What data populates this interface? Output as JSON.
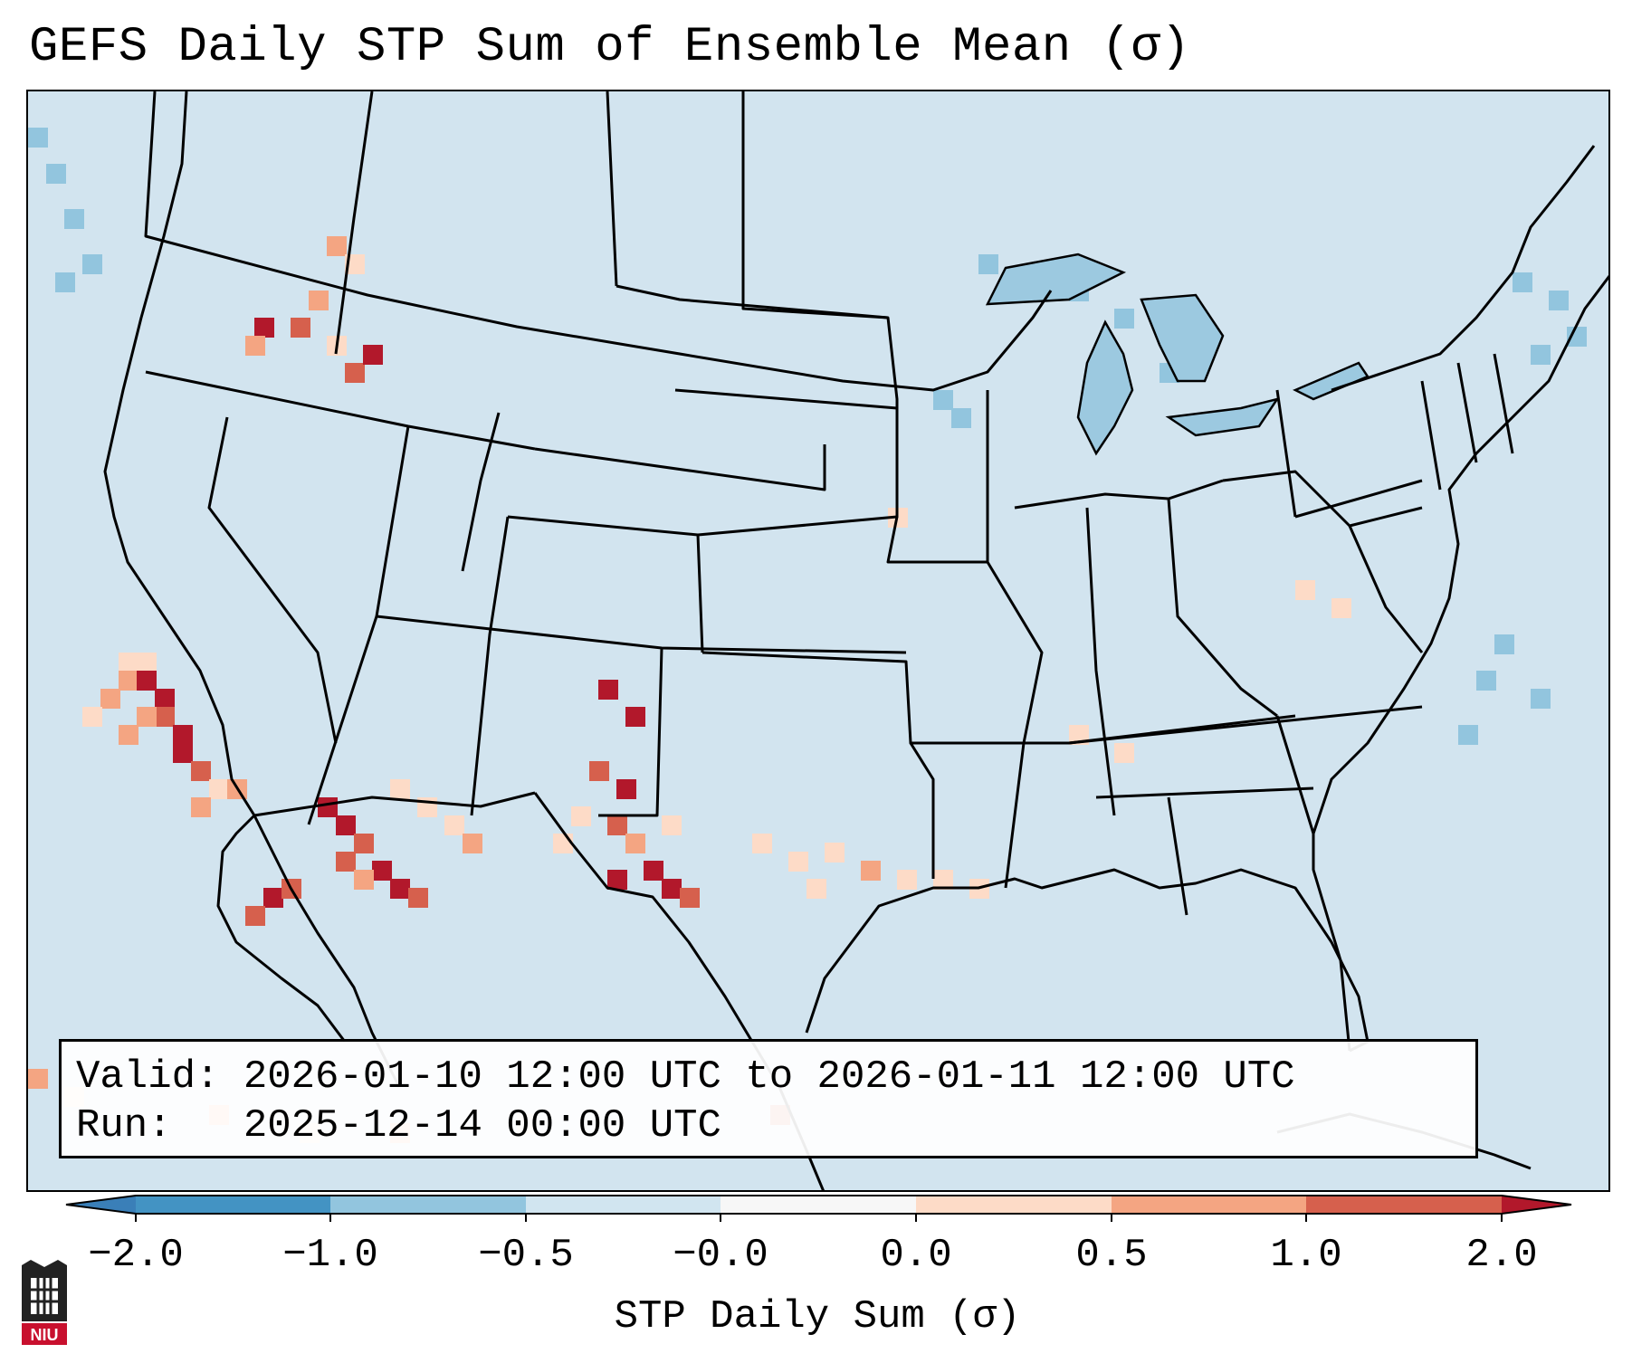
{
  "header": {
    "title": "GEFS Daily STP Sum of Ensemble Mean (σ)"
  },
  "map": {
    "region": "Continental United States and surroundings",
    "basemap_color": "#d2e4ef",
    "colors": {
      "lt_neg2": "#3a7fb8",
      "neg2_neg1": "#4393c3",
      "neg1_neg05": "#92c5de",
      "neg05_0": "#d1e5f0",
      "zero_neutral": "#f7f7f7",
      "zero_05": "#fddbc7",
      "p05_1": "#f4a582",
      "p1_2": "#d6604d",
      "gt_2": "#b2182b"
    }
  },
  "info": {
    "valid_label": "Valid:",
    "valid_value": "2026-01-10 12:00 UTC to 2026-01-11 12:00 UTC",
    "run_label": "Run:",
    "run_value": "2025-12-14 00:00 UTC"
  },
  "colorbar": {
    "label": "STP Daily Sum (σ)",
    "ticks": [
      "−2.0",
      "−1.0",
      "−0.5",
      "−0.0",
      "0.0",
      "0.5",
      "1.0",
      "2.0"
    ],
    "extend": "both"
  },
  "logo": {
    "text": "NIU",
    "icon": "niu-castle-logo-icon"
  }
}
